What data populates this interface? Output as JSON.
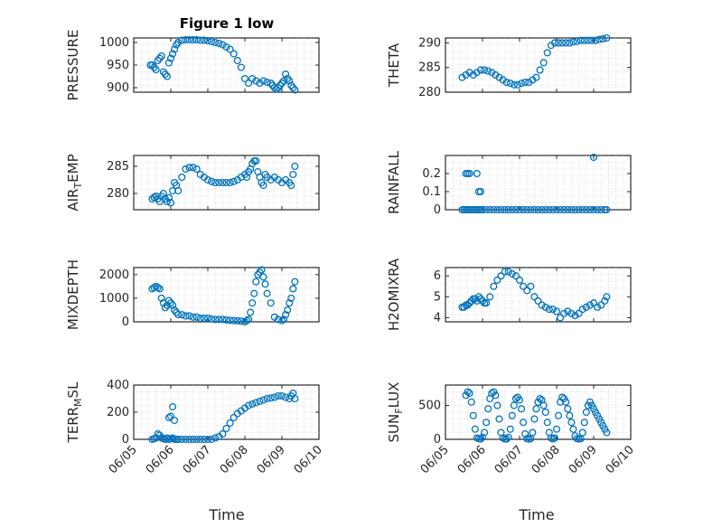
{
  "title": "Figure 1 low",
  "xlabel": "Time",
  "colors": {
    "marker": "#0072BD",
    "axes": "#262626",
    "grid": "#c8c8c8"
  },
  "chart_data": [
    {
      "type": "scatter",
      "panel": "pressure",
      "ylabel": "PRESSURE",
      "ylim": [
        890,
        1010
      ],
      "yticks": [
        900,
        950,
        1000
      ],
      "ytick_labels": [
        "900",
        "950",
        "1000"
      ],
      "xlim": [
        0,
        5
      ],
      "xticks": [
        0,
        1,
        2,
        3,
        4,
        5
      ],
      "xtick_labels": [],
      "x": [
        0.45,
        0.5,
        0.55,
        0.6,
        0.65,
        0.7,
        0.75,
        0.8,
        0.85,
        0.9,
        0.95,
        1.0,
        1.05,
        1.1,
        1.15,
        1.2,
        1.3,
        1.4,
        1.5,
        1.6,
        1.7,
        1.8,
        1.9,
        2.0,
        2.1,
        2.2,
        2.3,
        2.4,
        2.5,
        2.6,
        2.7,
        2.8,
        2.9,
        3.0,
        3.1,
        3.2,
        3.3,
        3.4,
        3.5,
        3.6,
        3.7,
        3.75,
        3.8,
        3.85,
        3.9,
        3.95,
        4.0,
        4.05,
        4.1,
        4.15,
        4.2,
        4.25,
        4.3,
        4.35
      ],
      "y": [
        950,
        950,
        945,
        940,
        960,
        965,
        970,
        935,
        930,
        925,
        955,
        965,
        975,
        985,
        995,
        1000,
        1005,
        1006,
        1006,
        1006,
        1006,
        1005,
        1005,
        1004,
        1002,
        1000,
        998,
        995,
        990,
        985,
        975,
        960,
        945,
        920,
        910,
        920,
        915,
        910,
        915,
        912,
        910,
        905,
        900,
        897,
        900,
        905,
        910,
        915,
        930,
        920,
        915,
        905,
        900,
        895
      ]
    },
    {
      "type": "scatter",
      "panel": "theta",
      "ylabel": "THETA",
      "ylim": [
        280,
        291
      ],
      "yticks": [
        280,
        285,
        290
      ],
      "ytick_labels": [
        "280",
        "285",
        "290"
      ],
      "xlim": [
        0,
        5
      ],
      "xticks": [
        0,
        1,
        2,
        3,
        4,
        5
      ],
      "xtick_labels": [],
      "x": [
        0.45,
        0.55,
        0.65,
        0.75,
        0.85,
        0.95,
        1.05,
        1.15,
        1.25,
        1.35,
        1.45,
        1.55,
        1.65,
        1.75,
        1.85,
        1.95,
        2.05,
        2.15,
        2.25,
        2.35,
        2.45,
        2.55,
        2.65,
        2.75,
        2.85,
        2.95,
        3.05,
        3.15,
        3.25,
        3.35,
        3.45,
        3.55,
        3.65,
        3.75,
        3.85,
        3.95,
        4.05,
        4.15,
        4.25,
        4.35
      ],
      "y": [
        283,
        283.5,
        284,
        283.5,
        284,
        284.5,
        284.5,
        284.3,
        284,
        283.5,
        283,
        282.5,
        282,
        281.8,
        281.5,
        281.5,
        281.8,
        282,
        282,
        282.5,
        283,
        284.5,
        286,
        288,
        289.5,
        290,
        290,
        290,
        290,
        290,
        290.2,
        290.3,
        290.5,
        290.5,
        290.5,
        290.5,
        290.5,
        290.7,
        290.8,
        291
      ]
    },
    {
      "type": "scatter",
      "panel": "air_temp",
      "ylabel": "AIR_TEMP",
      "ylim": [
        277,
        287
      ],
      "yticks": [
        280,
        285
      ],
      "ytick_labels": [
        "280",
        "285"
      ],
      "xlim": [
        0,
        5
      ],
      "xticks": [
        0,
        1,
        2,
        3,
        4,
        5
      ],
      "xtick_labels": [],
      "x": [
        0.5,
        0.55,
        0.6,
        0.65,
        0.7,
        0.75,
        0.8,
        0.85,
        0.9,
        0.95,
        1.0,
        1.05,
        1.1,
        1.15,
        1.2,
        1.3,
        1.4,
        1.5,
        1.6,
        1.7,
        1.8,
        1.9,
        2.0,
        2.1,
        2.2,
        2.3,
        2.4,
        2.5,
        2.6,
        2.7,
        2.8,
        2.9,
        3.0,
        3.05,
        3.1,
        3.15,
        3.2,
        3.25,
        3.3,
        3.35,
        3.4,
        3.45,
        3.5,
        3.55,
        3.6,
        3.7,
        3.8,
        3.9,
        4.0,
        4.1,
        4.2,
        4.25,
        4.3,
        4.35
      ],
      "y": [
        279,
        279.3,
        279.5,
        279,
        278.5,
        279.5,
        280,
        279,
        278.5,
        279.2,
        278.3,
        280.5,
        282,
        281.5,
        280.5,
        283,
        284.5,
        284.8,
        284.8,
        284.5,
        283.5,
        283,
        282.5,
        282.2,
        282,
        282,
        282,
        282,
        282,
        282.2,
        282.5,
        283,
        283.5,
        283,
        284,
        284.5,
        285.5,
        286,
        286,
        284,
        283,
        282,
        281.5,
        283.5,
        283,
        282.5,
        283,
        282.5,
        282,
        282.5,
        282,
        281.5,
        283.5,
        285
      ]
    },
    {
      "type": "scatter",
      "panel": "rainfall",
      "ylabel": "RAINFALL",
      "ylim": [
        0,
        0.3
      ],
      "yticks": [
        0,
        0.1,
        0.2
      ],
      "ytick_labels": [
        "0",
        "0.1",
        "0.2"
      ],
      "xlim": [
        0,
        5
      ],
      "xticks": [
        0,
        1,
        2,
        3,
        4,
        5
      ],
      "xtick_labels": [],
      "x": [
        0.45,
        0.5,
        0.55,
        0.6,
        0.65,
        0.7,
        0.75,
        0.8,
        0.85,
        0.9,
        0.95,
        1.0,
        1.1,
        1.2,
        1.3,
        1.4,
        1.5,
        1.6,
        1.7,
        1.8,
        1.9,
        2.0,
        2.1,
        2.2,
        2.3,
        2.4,
        2.5,
        2.6,
        2.7,
        2.8,
        2.9,
        3.0,
        3.1,
        3.2,
        3.3,
        3.4,
        3.5,
        3.6,
        3.7,
        3.8,
        3.9,
        4.0,
        4.1,
        4.2,
        4.3,
        4.35,
        0.55,
        0.6,
        0.65,
        0.85,
        0.9,
        0.95,
        4.0
      ],
      "y": [
        0,
        0,
        0,
        0,
        0,
        0,
        0,
        0,
        0,
        0,
        0,
        0,
        0,
        0,
        0,
        0,
        0,
        0,
        0,
        0,
        0,
        0,
        0,
        0,
        0,
        0,
        0,
        0,
        0,
        0,
        0,
        0,
        0,
        0,
        0,
        0,
        0,
        0,
        0,
        0,
        0,
        0,
        0,
        0,
        0,
        0,
        0.2,
        0.2,
        0.2,
        0.2,
        0.1,
        0.1,
        0.29
      ]
    },
    {
      "type": "scatter",
      "panel": "mixdepth",
      "ylabel": "MIXDEPTH",
      "ylim": [
        0,
        2300
      ],
      "yticks": [
        0,
        1000,
        2000
      ],
      "ytick_labels": [
        "0",
        "1000",
        "2000"
      ],
      "xlim": [
        0,
        5
      ],
      "xticks": [
        0,
        1,
        2,
        3,
        4,
        5
      ],
      "xtick_labels": [],
      "x": [
        0.5,
        0.55,
        0.6,
        0.65,
        0.7,
        0.75,
        0.8,
        0.85,
        0.9,
        0.95,
        1.0,
        1.05,
        1.1,
        1.15,
        1.2,
        1.3,
        1.4,
        1.5,
        1.6,
        1.7,
        1.8,
        1.9,
        2.0,
        2.1,
        2.2,
        2.3,
        2.4,
        2.5,
        2.6,
        2.7,
        2.8,
        2.9,
        3.0,
        3.05,
        3.1,
        3.15,
        3.2,
        3.25,
        3.3,
        3.35,
        3.4,
        3.45,
        3.5,
        3.55,
        3.6,
        3.7,
        3.8,
        3.9,
        4.0,
        4.05,
        4.1,
        4.15,
        4.2,
        4.25,
        4.3,
        4.35
      ],
      "y": [
        1400,
        1450,
        1500,
        1450,
        1400,
        1000,
        800,
        600,
        700,
        900,
        800,
        700,
        500,
        400,
        300,
        300,
        250,
        250,
        200,
        200,
        150,
        150,
        150,
        120,
        100,
        100,
        100,
        80,
        60,
        50,
        40,
        30,
        0,
        50,
        100,
        400,
        800,
        1200,
        1700,
        2000,
        2100,
        2200,
        1900,
        1600,
        1200,
        800,
        200,
        100,
        50,
        100,
        300,
        500,
        800,
        1000,
        1400,
        1700
      ]
    },
    {
      "type": "scatter",
      "panel": "h2omixra",
      "ylabel": "H2OMIXRA",
      "ylim": [
        3.8,
        6.4
      ],
      "yticks": [
        4,
        5,
        6
      ],
      "ytick_labels": [
        "4",
        "5",
        "6"
      ],
      "xlim": [
        0,
        5
      ],
      "xticks": [
        0,
        1,
        2,
        3,
        4,
        5
      ],
      "xtick_labels": [],
      "x": [
        0.45,
        0.5,
        0.55,
        0.6,
        0.65,
        0.7,
        0.75,
        0.8,
        0.85,
        0.9,
        0.95,
        1.0,
        1.05,
        1.1,
        1.2,
        1.3,
        1.4,
        1.5,
        1.6,
        1.7,
        1.8,
        1.9,
        2.0,
        2.1,
        2.2,
        2.3,
        2.4,
        2.5,
        2.6,
        2.7,
        2.8,
        2.9,
        3.0,
        3.1,
        3.2,
        3.3,
        3.4,
        3.5,
        3.6,
        3.7,
        3.8,
        3.9,
        4.0,
        4.1,
        4.2,
        4.3,
        4.35
      ],
      "y": [
        4.5,
        4.5,
        4.6,
        4.6,
        4.7,
        4.8,
        4.9,
        4.9,
        4.8,
        5.0,
        4.9,
        4.8,
        4.7,
        4.7,
        5.0,
        5.5,
        5.8,
        6.0,
        6.2,
        6.2,
        6.1,
        6.0,
        5.8,
        5.5,
        5.3,
        5.5,
        5.0,
        4.8,
        4.6,
        4.5,
        4.4,
        4.4,
        4.3,
        4.0,
        4.2,
        4.3,
        4.2,
        4.1,
        4.2,
        4.4,
        4.5,
        4.6,
        4.7,
        4.5,
        4.6,
        4.8,
        5.0
      ]
    },
    {
      "type": "scatter",
      "panel": "terr_msl",
      "ylabel": "TERR_MSL",
      "ylim": [
        0,
        400
      ],
      "yticks": [
        0,
        200,
        400
      ],
      "ytick_labels": [
        "0",
        "200",
        "400"
      ],
      "xlim": [
        0,
        5
      ],
      "xticks": [
        0,
        1,
        2,
        3,
        4,
        5
      ],
      "xtick_labels": [
        "06/05",
        "06/06",
        "06/07",
        "06/08",
        "06/09",
        "06/10"
      ],
      "x": [
        0.5,
        0.55,
        0.6,
        0.65,
        0.7,
        0.75,
        0.8,
        0.85,
        0.9,
        0.95,
        1.0,
        1.05,
        1.1,
        1.15,
        1.2,
        1.3,
        1.4,
        1.5,
        1.6,
        1.7,
        1.8,
        1.9,
        2.0,
        2.1,
        2.2,
        2.3,
        2.4,
        2.5,
        2.6,
        2.7,
        2.8,
        2.9,
        3.0,
        3.1,
        3.2,
        3.3,
        3.4,
        3.5,
        3.6,
        3.7,
        3.8,
        3.9,
        4.0,
        4.1,
        4.2,
        4.25,
        4.3,
        4.35,
        0.95,
        1.0,
        1.05,
        1.1
      ],
      "y": [
        0,
        5,
        10,
        40,
        30,
        10,
        5,
        0,
        10,
        0,
        5,
        10,
        0,
        0,
        0,
        0,
        0,
        0,
        0,
        0,
        0,
        0,
        0,
        0,
        10,
        20,
        40,
        80,
        120,
        160,
        190,
        210,
        230,
        250,
        260,
        270,
        280,
        290,
        300,
        305,
        310,
        320,
        320,
        310,
        300,
        320,
        340,
        300,
        160,
        170,
        240,
        140
      ]
    },
    {
      "type": "scatter",
      "panel": "sun_flux",
      "ylabel": "SUN_FLUX",
      "ylim": [
        0,
        800
      ],
      "yticks": [
        0,
        500
      ],
      "ytick_labels": [
        "0",
        "500"
      ],
      "xlim": [
        0,
        5
      ],
      "xticks": [
        0,
        1,
        2,
        3,
        4,
        5
      ],
      "xtick_labels": [
        "06/05",
        "06/06",
        "06/07",
        "06/08",
        "06/09",
        "06/10"
      ],
      "x": [
        0.55,
        0.6,
        0.65,
        0.7,
        0.75,
        0.8,
        0.85,
        0.9,
        0.95,
        1.0,
        1.05,
        1.1,
        1.15,
        1.2,
        1.25,
        1.3,
        1.35,
        1.4,
        1.45,
        1.5,
        1.55,
        1.6,
        1.65,
        1.7,
        1.75,
        1.8,
        1.85,
        1.9,
        1.95,
        2.0,
        2.05,
        2.1,
        2.15,
        2.2,
        2.25,
        2.3,
        2.35,
        2.4,
        2.45,
        2.5,
        2.55,
        2.6,
        2.65,
        2.7,
        2.75,
        2.8,
        2.85,
        2.9,
        2.95,
        3.0,
        3.05,
        3.1,
        3.15,
        3.2,
        3.25,
        3.3,
        3.35,
        3.4,
        3.45,
        3.5,
        3.55,
        3.6,
        3.65,
        3.7,
        3.75,
        3.8,
        3.85,
        3.9,
        3.95,
        4.0,
        4.05,
        4.1,
        4.15,
        4.2,
        4.25,
        4.3,
        4.35
      ],
      "y": [
        650,
        700,
        680,
        550,
        350,
        150,
        20,
        10,
        5,
        30,
        100,
        250,
        450,
        600,
        680,
        700,
        650,
        500,
        300,
        100,
        20,
        5,
        5,
        30,
        150,
        350,
        500,
        600,
        620,
        580,
        450,
        250,
        80,
        10,
        5,
        10,
        100,
        300,
        450,
        550,
        600,
        580,
        500,
        400,
        250,
        100,
        20,
        5,
        20,
        150,
        350,
        550,
        620,
        600,
        550,
        450,
        350,
        250,
        150,
        50,
        10,
        5,
        10,
        100,
        250,
        400,
        500,
        550,
        500,
        450,
        400,
        350,
        300,
        250,
        200,
        150,
        100
      ]
    }
  ]
}
